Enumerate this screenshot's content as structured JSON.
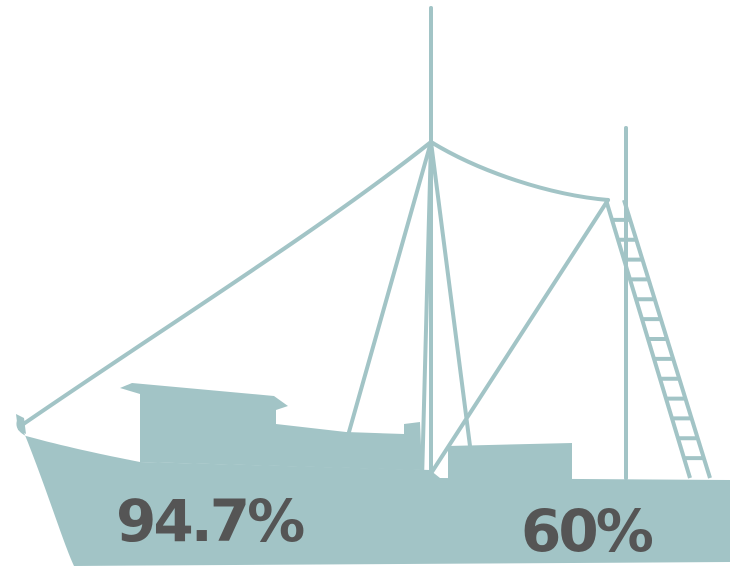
{
  "colors": {
    "boat": "#a2c4c6",
    "text": "#555555",
    "background": "#ffffff"
  },
  "illustration": {
    "icon": "fishing-boat-silhouette-icon"
  },
  "stats": {
    "left": "94.7%",
    "right": "60%"
  }
}
